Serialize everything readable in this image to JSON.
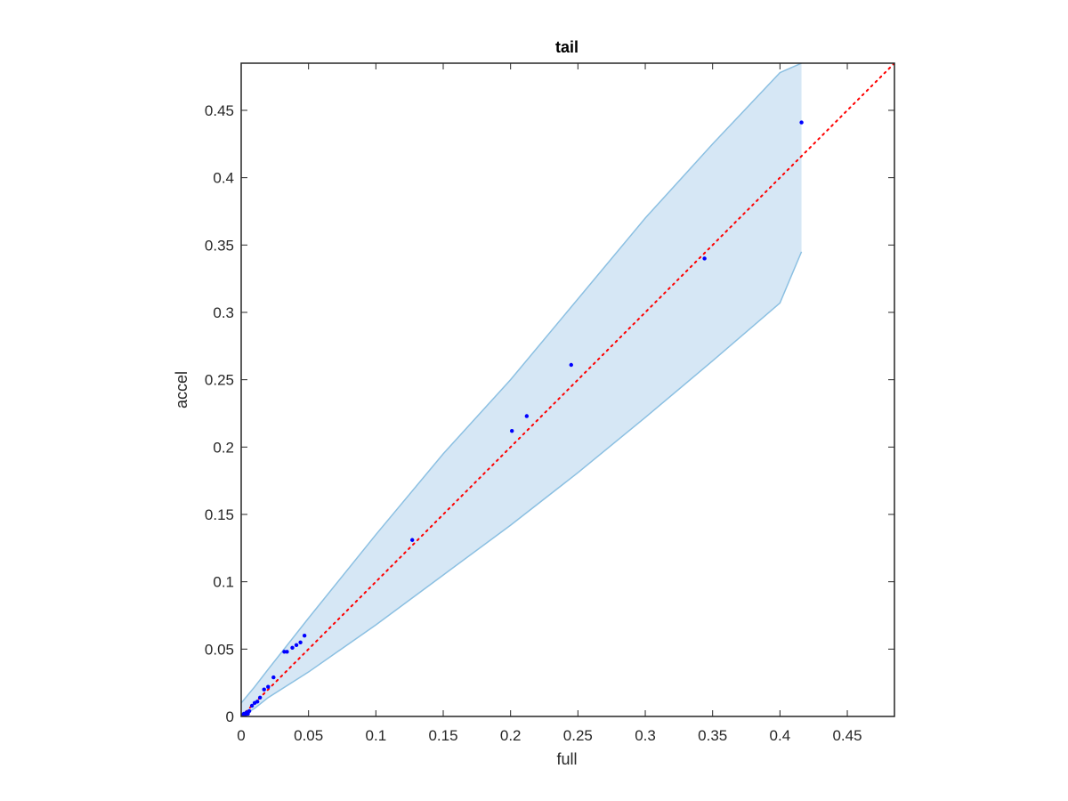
{
  "chart_data": {
    "type": "scatter",
    "title": "tail",
    "xlabel": "full",
    "ylabel": "accel",
    "xlim": [
      0,
      0.485
    ],
    "ylim": [
      0,
      0.485
    ],
    "xticks": [
      0,
      0.05,
      0.1,
      0.15,
      0.2,
      0.25,
      0.3,
      0.35,
      0.4,
      0.45
    ],
    "xtick_labels": [
      "0",
      "0.05",
      "0.1",
      "0.15",
      "0.2",
      "0.25",
      "0.3",
      "0.35",
      "0.4",
      "0.45"
    ],
    "yticks": [
      0,
      0.05,
      0.1,
      0.15,
      0.2,
      0.25,
      0.3,
      0.35,
      0.4,
      0.45
    ],
    "ytick_labels": [
      "0",
      "0.05",
      "0.1",
      "0.15",
      "0.2",
      "0.25",
      "0.3",
      "0.35",
      "0.4",
      "0.45"
    ],
    "grid": false,
    "band": {
      "upper": [
        [
          0,
          0.01
        ],
        [
          0.01,
          0.022
        ],
        [
          0.02,
          0.035
        ],
        [
          0.05,
          0.073
        ],
        [
          0.1,
          0.135
        ],
        [
          0.15,
          0.195
        ],
        [
          0.2,
          0.25
        ],
        [
          0.25,
          0.31
        ],
        [
          0.3,
          0.37
        ],
        [
          0.35,
          0.425
        ],
        [
          0.4,
          0.478
        ],
        [
          0.416,
          0.485
        ]
      ],
      "lower": [
        [
          0,
          0
        ],
        [
          0.01,
          0.006
        ],
        [
          0.02,
          0.014
        ],
        [
          0.05,
          0.033
        ],
        [
          0.1,
          0.068
        ],
        [
          0.15,
          0.105
        ],
        [
          0.2,
          0.142
        ],
        [
          0.25,
          0.181
        ],
        [
          0.3,
          0.222
        ],
        [
          0.35,
          0.264
        ],
        [
          0.4,
          0.307
        ],
        [
          0.416,
          0.345
        ]
      ],
      "fill_color": "#d6e7f5",
      "edge_color": "#8cc0e2"
    },
    "reference_line": {
      "from": [
        0,
        0
      ],
      "to": [
        0.485,
        0.485
      ],
      "color": "#ff0000",
      "style": "dotted"
    },
    "points": {
      "color": "#0000ff",
      "x": [
        0.0005,
        0.001,
        0.002,
        0.003,
        0.004,
        0.005,
        0.006,
        0.008,
        0.01,
        0.012,
        0.014,
        0.017,
        0.02,
        0.024,
        0.032,
        0.034,
        0.038,
        0.041,
        0.044,
        0.047,
        0.127,
        0.201,
        0.212,
        0.245,
        0.344,
        0.416
      ],
      "y": [
        0.0005,
        0.001,
        0.002,
        0.001,
        0.003,
        0.002,
        0.004,
        0.008,
        0.01,
        0.011,
        0.014,
        0.02,
        0.022,
        0.029,
        0.048,
        0.048,
        0.051,
        0.053,
        0.055,
        0.06,
        0.131,
        0.212,
        0.223,
        0.261,
        0.34,
        0.441
      ]
    }
  }
}
